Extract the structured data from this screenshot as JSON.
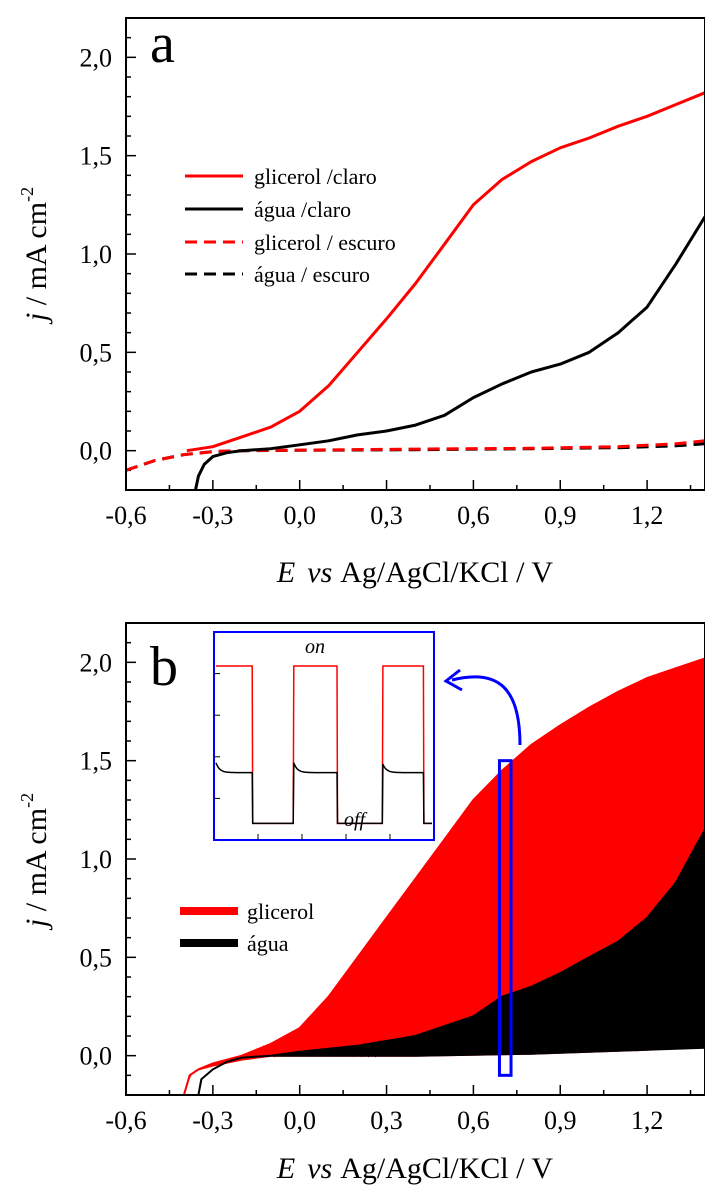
{
  "chart_data": [
    {
      "panel": "a",
      "type": "line",
      "xlabel_parts": [
        "E",
        "vs",
        "Ag/AgCl/KCl / V"
      ],
      "ylabel_parts": [
        "j",
        " / mA cm",
        "-2"
      ],
      "xlim": [
        -0.6,
        1.4
      ],
      "ylim": [
        -0.2,
        2.2
      ],
      "x_ticks": [
        "-0,6",
        "-0,3",
        "0,0",
        "0,3",
        "0,6",
        "0,9",
        "1,2"
      ],
      "x_tick_values": [
        -0.6,
        -0.3,
        0.0,
        0.3,
        0.6,
        0.9,
        1.2
      ],
      "y_ticks": [
        "0,0",
        "0,5",
        "1,0",
        "1,5",
        "2,0"
      ],
      "y_tick_values": [
        0.0,
        0.5,
        1.0,
        1.5,
        2.0
      ],
      "legend_position": "upper-left",
      "series": [
        {
          "name": "glicerol /claro",
          "color": "#ff0000",
          "dash": "solid",
          "points": [
            [
              -0.39,
              0.0
            ],
            [
              -0.3,
              0.02
            ],
            [
              -0.2,
              0.07
            ],
            [
              -0.1,
              0.12
            ],
            [
              0.0,
              0.2
            ],
            [
              0.1,
              0.33
            ],
            [
              0.2,
              0.5
            ],
            [
              0.3,
              0.67
            ],
            [
              0.4,
              0.85
            ],
            [
              0.5,
              1.05
            ],
            [
              0.6,
              1.25
            ],
            [
              0.7,
              1.38
            ],
            [
              0.8,
              1.47
            ],
            [
              0.9,
              1.54
            ],
            [
              1.0,
              1.59
            ],
            [
              1.1,
              1.65
            ],
            [
              1.2,
              1.7
            ],
            [
              1.3,
              1.76
            ],
            [
              1.4,
              1.82
            ]
          ]
        },
        {
          "name": "água /claro",
          "color": "#000000",
          "dash": "solid",
          "points": [
            [
              -0.36,
              -0.2
            ],
            [
              -0.35,
              -0.13
            ],
            [
              -0.33,
              -0.07
            ],
            [
              -0.3,
              -0.03
            ],
            [
              -0.25,
              -0.01
            ],
            [
              -0.2,
              0.0
            ],
            [
              -0.1,
              0.01
            ],
            [
              0.0,
              0.03
            ],
            [
              0.1,
              0.05
            ],
            [
              0.2,
              0.08
            ],
            [
              0.3,
              0.1
            ],
            [
              0.4,
              0.13
            ],
            [
              0.5,
              0.18
            ],
            [
              0.6,
              0.27
            ],
            [
              0.7,
              0.34
            ],
            [
              0.8,
              0.4
            ],
            [
              0.9,
              0.44
            ],
            [
              1.0,
              0.5
            ],
            [
              1.1,
              0.6
            ],
            [
              1.2,
              0.73
            ],
            [
              1.3,
              0.95
            ],
            [
              1.4,
              1.19
            ]
          ]
        },
        {
          "name": "glicerol / escuro",
          "color": "#ff0000",
          "dash": "dashed",
          "points": [
            [
              -0.6,
              -0.1
            ],
            [
              -0.5,
              -0.05
            ],
            [
              -0.4,
              -0.02
            ],
            [
              -0.3,
              -0.005
            ],
            [
              -0.2,
              0.0
            ],
            [
              0.0,
              0.003
            ],
            [
              0.4,
              0.008
            ],
            [
              0.8,
              0.012
            ],
            [
              1.1,
              0.02
            ],
            [
              1.3,
              0.035
            ],
            [
              1.4,
              0.05
            ]
          ]
        },
        {
          "name": "água / escuro",
          "color": "#000000",
          "dash": "dashed",
          "points": [
            [
              -0.6,
              -0.1
            ],
            [
              -0.5,
              -0.05
            ],
            [
              -0.4,
              -0.02
            ],
            [
              -0.3,
              -0.005
            ],
            [
              -0.2,
              0.0
            ],
            [
              0.0,
              0.002
            ],
            [
              0.4,
              0.005
            ],
            [
              0.8,
              0.01
            ],
            [
              1.1,
              0.015
            ],
            [
              1.3,
              0.025
            ],
            [
              1.4,
              0.035
            ]
          ]
        }
      ]
    },
    {
      "panel": "b",
      "type": "line",
      "xlabel_parts": [
        "E",
        "vs",
        "Ag/AgCl/KCl / V"
      ],
      "ylabel_parts": [
        "j",
        " / mA cm",
        "-2"
      ],
      "xlim": [
        -0.6,
        1.4
      ],
      "ylim": [
        -0.2,
        2.2
      ],
      "x_ticks": [
        "-0,6",
        "-0,3",
        "0,0",
        "0,3",
        "0,6",
        "0,9",
        "1,2"
      ],
      "x_tick_values": [
        -0.6,
        -0.3,
        0.0,
        0.3,
        0.6,
        0.9,
        1.2
      ],
      "y_ticks": [
        "0,0",
        "0,5",
        "1,0",
        "1,5",
        "2,0"
      ],
      "y_tick_values": [
        0.0,
        0.5,
        1.0,
        1.5,
        2.0
      ],
      "legend_position": "lower-left",
      "series": [
        {
          "name": "glicerol",
          "color": "#ff0000",
          "upper": [
            [
              -0.4,
              -0.2
            ],
            [
              -0.38,
              -0.1
            ],
            [
              -0.35,
              -0.07
            ],
            [
              -0.3,
              -0.04
            ],
            [
              -0.2,
              0.0
            ],
            [
              -0.1,
              0.06
            ],
            [
              0.0,
              0.14
            ],
            [
              0.1,
              0.3
            ],
            [
              0.2,
              0.5
            ],
            [
              0.3,
              0.7
            ],
            [
              0.4,
              0.9
            ],
            [
              0.5,
              1.1
            ],
            [
              0.6,
              1.3
            ],
            [
              0.7,
              1.45
            ],
            [
              0.8,
              1.58
            ],
            [
              0.9,
              1.68
            ],
            [
              1.0,
              1.77
            ],
            [
              1.1,
              1.85
            ],
            [
              1.2,
              1.92
            ],
            [
              1.3,
              1.97
            ],
            [
              1.4,
              2.02
            ]
          ],
          "lower": [
            [
              -0.4,
              -0.2
            ],
            [
              -0.38,
              -0.1
            ],
            [
              -0.35,
              -0.07
            ],
            [
              -0.3,
              -0.05
            ],
            [
              -0.2,
              -0.02
            ],
            [
              -0.1,
              0.0
            ],
            [
              0.0,
              0.0
            ],
            [
              0.4,
              0.0
            ],
            [
              0.8,
              0.01
            ],
            [
              1.2,
              0.03
            ],
            [
              1.4,
              0.05
            ]
          ]
        },
        {
          "name": "água",
          "color": "#000000",
          "upper": [
            [
              -0.35,
              -0.2
            ],
            [
              -0.34,
              -0.12
            ],
            [
              -0.3,
              -0.07
            ],
            [
              -0.25,
              -0.03
            ],
            [
              -0.2,
              -0.01
            ],
            [
              -0.1,
              0.0
            ],
            [
              0.0,
              0.02
            ],
            [
              0.2,
              0.05
            ],
            [
              0.4,
              0.1
            ],
            [
              0.6,
              0.2
            ],
            [
              0.7,
              0.3
            ],
            [
              0.8,
              0.35
            ],
            [
              0.9,
              0.42
            ],
            [
              1.0,
              0.5
            ],
            [
              1.1,
              0.58
            ],
            [
              1.2,
              0.7
            ],
            [
              1.3,
              0.88
            ],
            [
              1.4,
              1.15
            ]
          ],
          "lower": [
            [
              -0.35,
              -0.2
            ],
            [
              -0.34,
              -0.12
            ],
            [
              -0.3,
              -0.07
            ],
            [
              -0.25,
              -0.03
            ],
            [
              -0.2,
              -0.01
            ],
            [
              -0.1,
              0.0
            ],
            [
              0.0,
              0.0
            ],
            [
              0.4,
              0.0
            ],
            [
              0.8,
              0.01
            ],
            [
              1.2,
              0.03
            ],
            [
              1.4,
              0.04
            ]
          ]
        }
      ],
      "highlight_box_x": [
        0.69,
        0.73
      ],
      "highlight_box_y": [
        -0.1,
        1.5
      ],
      "inset": {
        "on_label": "on",
        "off_label": "off",
        "cycles": 3,
        "red_on": 1.0,
        "red_off": 0.04,
        "black_on": 0.35,
        "black_spike": 0.41,
        "black_off": 0.04
      }
    }
  ],
  "panel_letters": [
    "a",
    "b"
  ]
}
